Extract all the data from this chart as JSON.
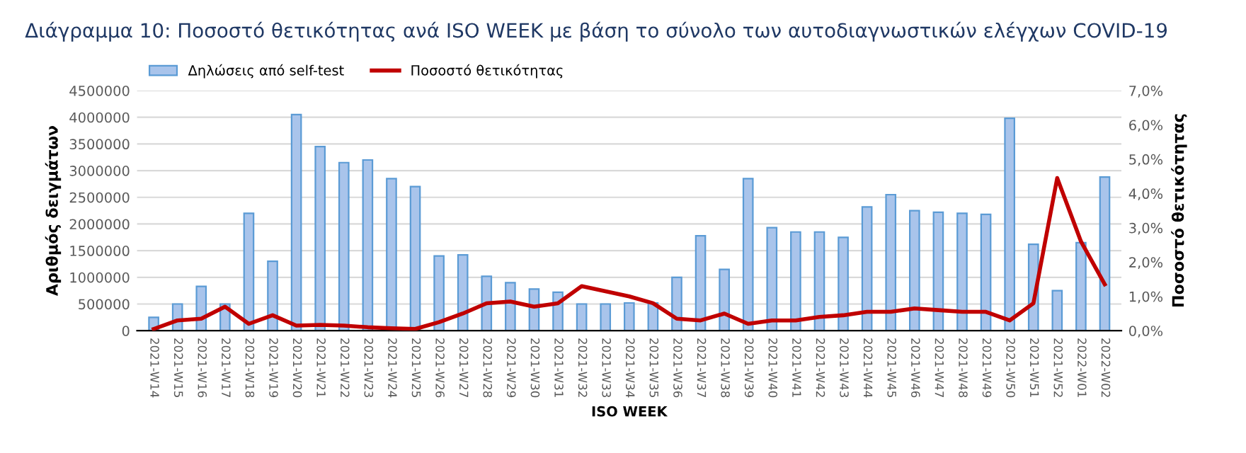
{
  "chart_data": {
    "type": "bar",
    "title": "Διάγραμμα 10: Ποσοστό θετικότητας ανά ISO WEEK με βάση το σύνολο των αυτοδιαγνωστικών ελέγχων COVID-19",
    "xlabel": "ISO WEEK",
    "ylabel": "Αριθμός δειγμάτων",
    "y2label": "Ποσοστό θετικότητας",
    "categories": [
      "2021-W14",
      "2021-W15",
      "2021-W16",
      "2021-W17",
      "2021-W18",
      "2021-W19",
      "2021-W20",
      "2021-W21",
      "2021-W22",
      "2021-W23",
      "2021-W24",
      "2021-W25",
      "2021-W26",
      "2021-W27",
      "2021-W28",
      "2021-W29",
      "2021-W30",
      "2021-W31",
      "2021-W32",
      "2021-W33",
      "2021-W34",
      "2021-W35",
      "2021-W36",
      "2021-W37",
      "2021-W38",
      "2021-W39",
      "2021-W40",
      "2021-W41",
      "2021-W42",
      "2021-W43",
      "2021-W44",
      "2021-W45",
      "2021-W46",
      "2021-W47",
      "2021-W48",
      "2021-W49",
      "2021-W50",
      "2021-W51",
      "2021-W52",
      "2022-W01",
      "2022-W02"
    ],
    "series": [
      {
        "name": "Δηλώσεις από self-test",
        "color": "#a9c4eb",
        "values": [
          250000,
          500000,
          830000,
          500000,
          2200000,
          1300000,
          4050000,
          3450000,
          3150000,
          3200000,
          2850000,
          2700000,
          1400000,
          1420000,
          1020000,
          900000,
          780000,
          720000,
          500000,
          500000,
          520000,
          520000,
          1000000,
          1780000,
          1150000,
          2850000,
          1930000,
          1850000,
          1850000,
          1750000,
          2320000,
          2550000,
          2250000,
          2220000,
          2200000,
          2180000,
          3980000,
          1620000,
          750000,
          1650000,
          2880000
        ]
      },
      {
        "name": "Ποσοστό θετικότητας",
        "type": "line",
        "axis": "y2",
        "color": "#c00000",
        "values": [
          0.05,
          0.3,
          0.35,
          0.7,
          0.2,
          0.45,
          0.15,
          0.17,
          0.15,
          0.1,
          0.07,
          0.05,
          0.25,
          0.5,
          0.8,
          0.85,
          0.7,
          0.8,
          1.3,
          1.15,
          1.0,
          0.8,
          0.35,
          0.3,
          0.5,
          0.2,
          0.3,
          0.3,
          0.4,
          0.45,
          0.55,
          0.55,
          0.65,
          0.6,
          0.55,
          0.55,
          0.3,
          0.8,
          4.45,
          2.6,
          1.35
        ]
      }
    ],
    "ylim": [
      0,
      4500000
    ],
    "yticks": [
      0,
      500000,
      1000000,
      1500000,
      2000000,
      2500000,
      3000000,
      3500000,
      4000000,
      4500000
    ],
    "y2lim": [
      0,
      7
    ],
    "y2ticks": [
      {
        "value": 0,
        "label": "0,0%"
      },
      {
        "value": 1,
        "label": "1,0%"
      },
      {
        "value": 2,
        "label": "2,0%"
      },
      {
        "value": 3,
        "label": "3,0%"
      },
      {
        "value": 4,
        "label": "4,0%"
      },
      {
        "value": 5,
        "label": "5,0%"
      },
      {
        "value": 6,
        "label": "6,0%"
      },
      {
        "value": 7,
        "label": "7,0%"
      }
    ],
    "grid": "y",
    "legend": "top left",
    "marker": "none",
    "line_style": "solid"
  }
}
